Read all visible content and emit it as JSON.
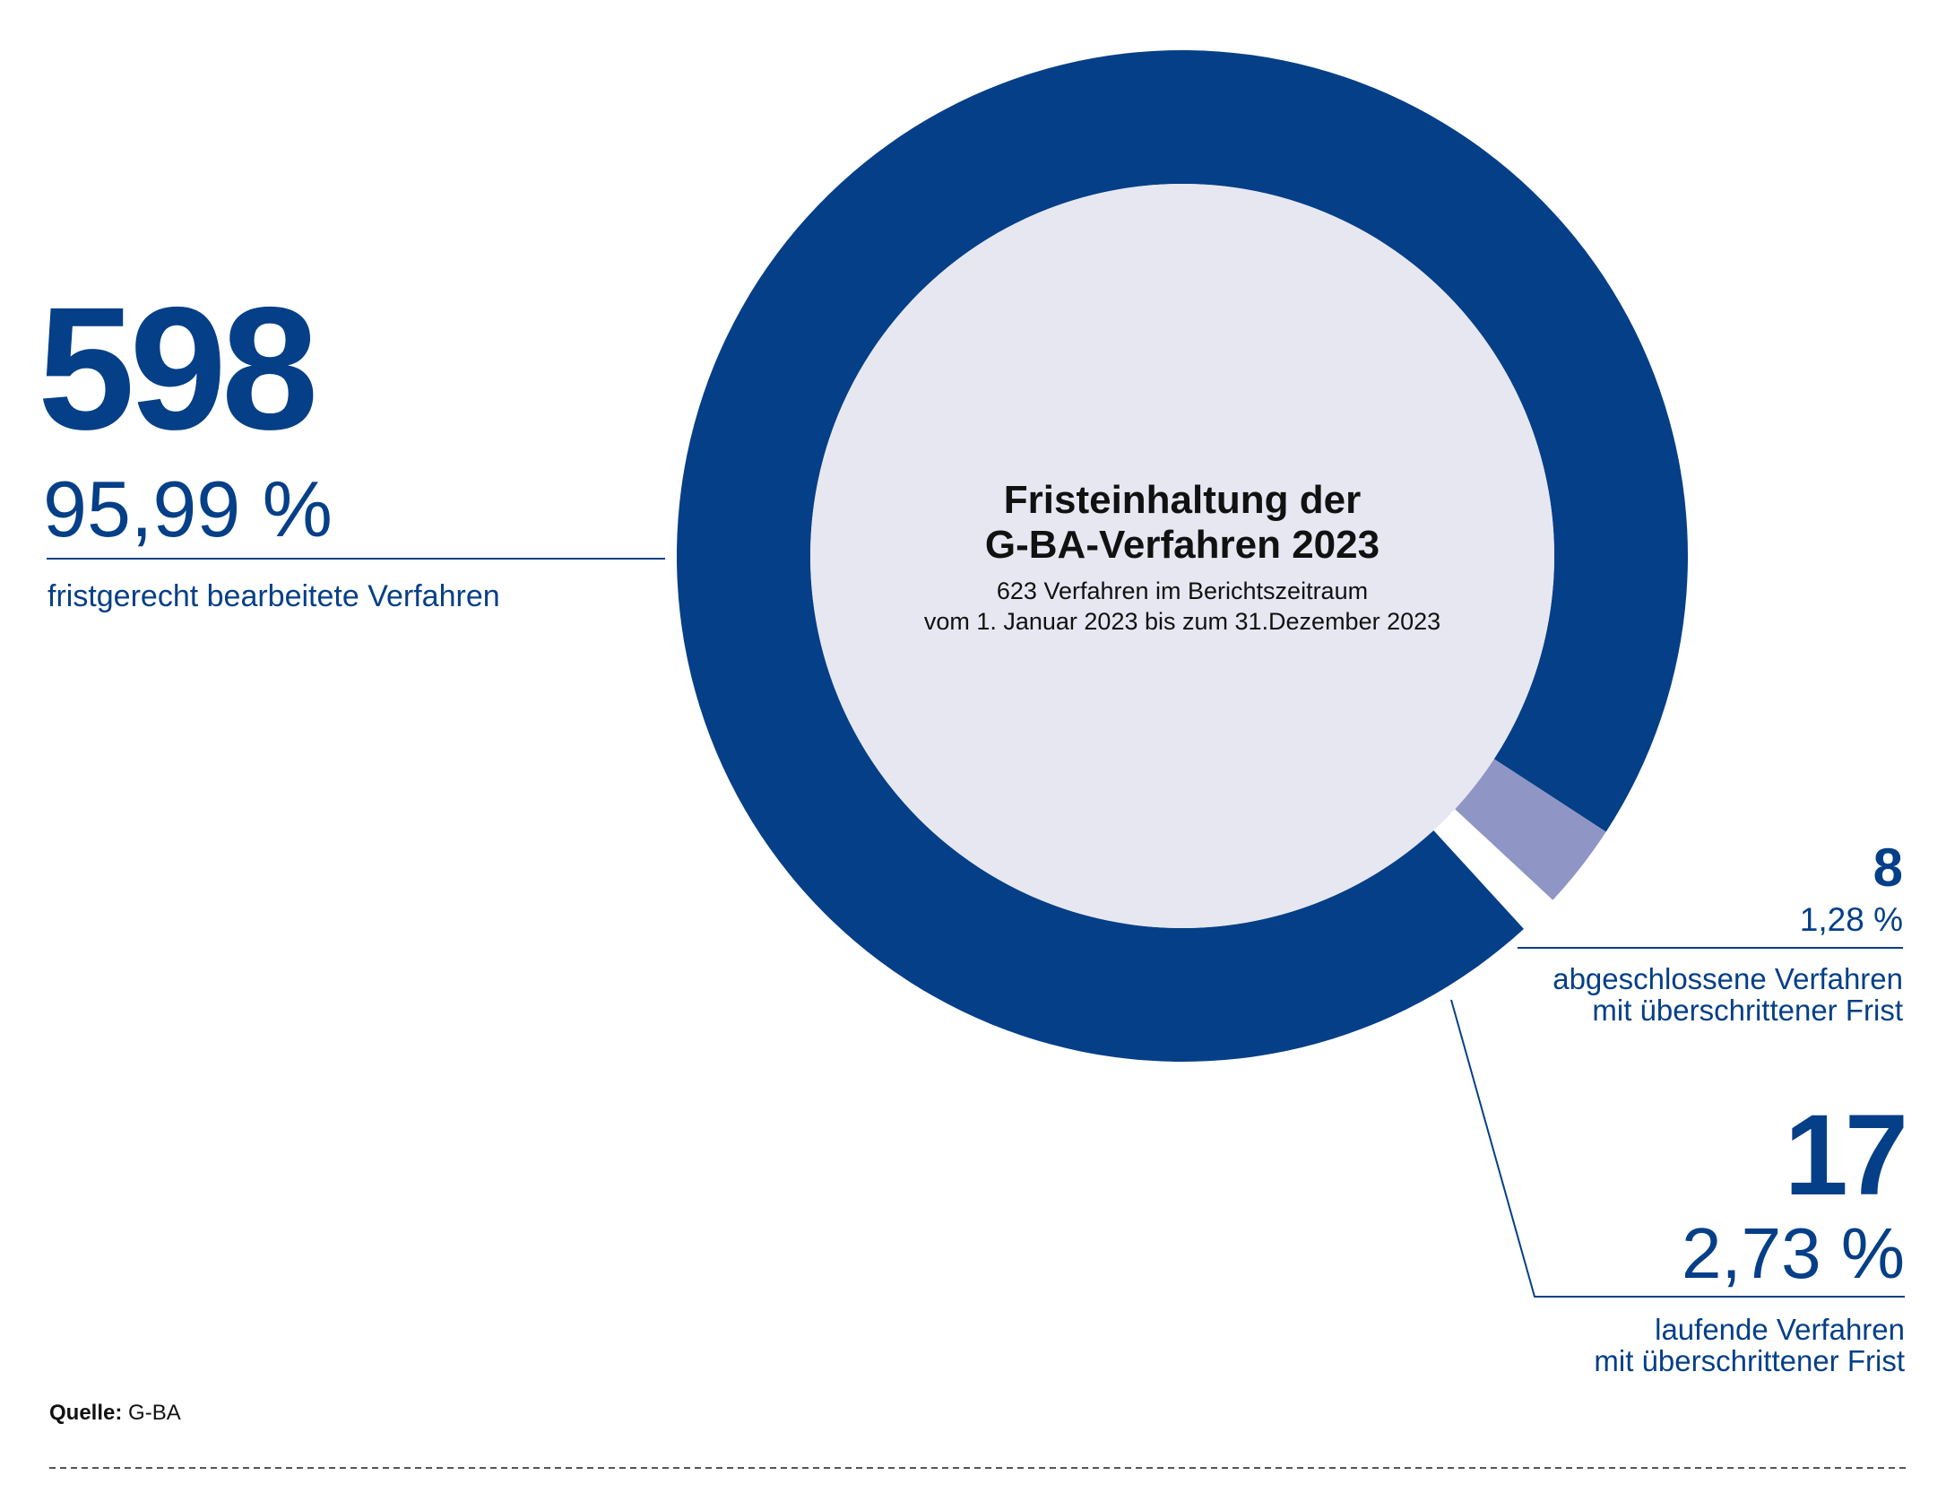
{
  "colors": {
    "primary": "#053f87",
    "light_segment": "#8f96c5",
    "inner_fill": "#e6e7f1",
    "text_dark": "#111111",
    "rule": "#053f87",
    "dash": "#555555"
  },
  "chart_data": {
    "type": "pie",
    "title": "Fristeinhaltung der G-BA-Verfahren 2023",
    "subtitle_line1": "623 Verfahren im Berichtszeitraum",
    "subtitle_line2": "vom 1. Januar 2023 bis zum 31.Dezember 2023",
    "total": 623,
    "segments": [
      {
        "name": "fristgerecht bearbeitete Verfahren",
        "value": 598,
        "percent": 95.99,
        "color": "#053f87"
      },
      {
        "name": "abgeschlossene Verfahren mit überschrittener Frist",
        "value": 8,
        "percent": 1.28,
        "color": "#ffffff"
      },
      {
        "name": "laufende Verfahren mit überschrittener Frist",
        "value": 17,
        "percent": 2.73,
        "color": "#8f96c5"
      }
    ]
  },
  "labels": {
    "main": {
      "count": "598",
      "percent": "95,99 %",
      "caption": "fristgerecht bearbeitete Verfahren"
    },
    "closed": {
      "count": "8",
      "percent": "1,28 %",
      "caption_line1": "abgeschlossene Verfahren",
      "caption_line2": "mit überschrittener Frist"
    },
    "running": {
      "count": "17",
      "percent": "2,73 %",
      "caption_line1": "laufende Verfahren",
      "caption_line2": "mit überschrittener Frist"
    }
  },
  "source": {
    "label": "Quelle:",
    "value": "G-BA"
  }
}
